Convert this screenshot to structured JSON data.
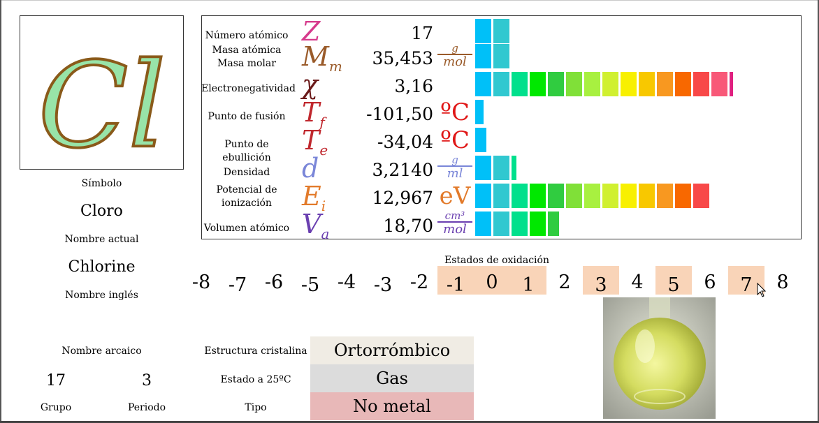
{
  "element": {
    "symbol": "Cl",
    "symbol_caption": "Símbolo",
    "name": "Cloro",
    "name_caption": "Nombre actual",
    "english_name": "Chlorine",
    "english_caption": "Nombre inglés",
    "archaic_caption": "Nombre arcaico",
    "group_value": "17",
    "group_caption": "Grupo",
    "period_value": "3",
    "period_caption": "Periodo"
  },
  "properties": [
    {
      "label": "Número atómico",
      "symbol": "Z",
      "value": "17",
      "unit": "",
      "bar_segments": 2,
      "color": "#d63a8c"
    },
    {
      "label": "Masa atómica\nMasa molar",
      "symbol": "M",
      "symbol_sub": "m",
      "value": "35,453",
      "unit_top": "g",
      "unit_bottom": "mol",
      "bar_segments": 2,
      "color": "#9a5b2a"
    },
    {
      "label": "Electronegatividad",
      "symbol": "χ",
      "value": "3,16",
      "unit": "",
      "bar_segments": 14.2,
      "color": "#6b1a1a"
    },
    {
      "label": "Punto de fusión",
      "symbol": "T",
      "symbol_sub": "f",
      "value": "-101,50",
      "unit": "ºC",
      "bar_segments": 0.5,
      "color": "#c0282e"
    },
    {
      "label": "Punto de ebullición",
      "symbol": "T",
      "symbol_sub": "e",
      "value": "-34,04",
      "unit": "ºC",
      "bar_segments": 0.7,
      "color": "#c0282e"
    },
    {
      "label": "Densidad",
      "symbol": "d",
      "value": "3,2140",
      "unit_top": "g",
      "unit_bottom": "ml",
      "bar_segments": 2.3,
      "color": "#7a86d8"
    },
    {
      "label": "Potencial de\nionización",
      "symbol": "E",
      "symbol_sub": "i",
      "value": "12,967",
      "unit": "eV",
      "bar_segments": 13,
      "color": "#e27a2a"
    },
    {
      "label": "Volumen atómico",
      "symbol": "V",
      "symbol_sub": "a",
      "value": "18,70",
      "unit_top": "cm³",
      "unit_bottom": "mol",
      "bar_segments": 4.7,
      "color": "#6a3fb0"
    }
  ],
  "bar_palette": [
    "#00c0f8",
    "#30c8d0",
    "#00e08c",
    "#00e800",
    "#30cc40",
    "#80e038",
    "#a8f040",
    "#d0f030",
    "#f8f000",
    "#f8c800",
    "#f89820",
    "#f86800",
    "#f84848",
    "#f85878",
    "#e02080"
  ],
  "oxidation": {
    "title": "Estados de oxidación",
    "states": [
      "-8",
      "-7",
      "-6",
      "-5",
      "-4",
      "-3",
      "-2",
      "-1",
      "0",
      "1",
      "2",
      "3",
      "4",
      "5",
      "6",
      "7",
      "8"
    ],
    "active": [
      "-1",
      "0",
      "1",
      "3",
      "5",
      "7"
    ]
  },
  "info": {
    "structure_caption": "Estructura cristalina",
    "structure_value": "Ortorrómbico",
    "state_caption": "Estado a 25ºC",
    "state_value": "Gas",
    "type_caption": "Tipo",
    "type_value": "No metal",
    "colors": {
      "structure": "#f0ece4",
      "state": "#dcdcdc",
      "type": "#e8b8b8"
    }
  }
}
